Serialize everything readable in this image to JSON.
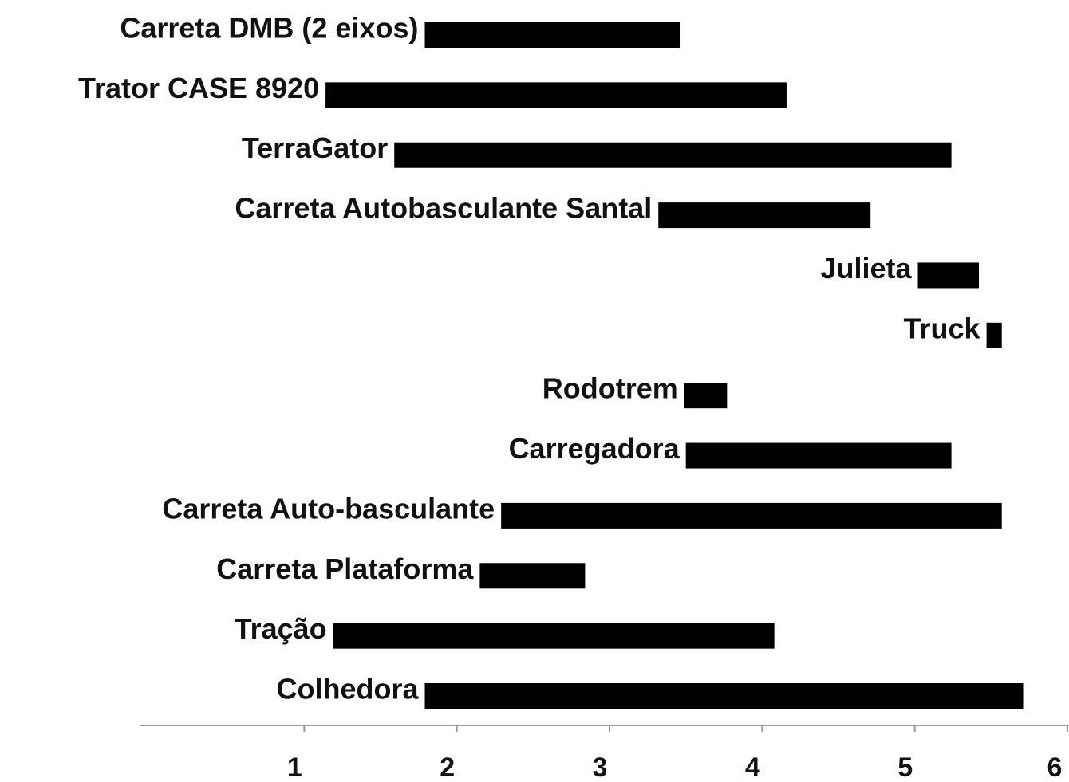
{
  "chart_data": {
    "type": "range_bar",
    "categories": [
      "Carreta DMB (2 eixos)",
      "Trator CASE 8920",
      "TerraGator",
      "Carreta Autobasculante Santal",
      "Julieta",
      "Truck",
      "Rodotrem",
      "Carregadora",
      "Carreta Auto-basculante",
      "Carreta Plataforma",
      "Tração",
      "Colhedora"
    ],
    "starts": [
      1.79,
      1.14,
      1.59,
      3.32,
      5.02,
      5.47,
      3.49,
      3.5,
      2.29,
      2.15,
      1.19,
      1.79
    ],
    "ends": [
      3.46,
      4.16,
      5.24,
      4.71,
      5.42,
      5.57,
      3.77,
      5.24,
      5.57,
      2.84,
      4.08,
      5.71
    ],
    "color": "#000000",
    "xlim": [
      0,
      6
    ],
    "xticks": [
      1,
      2,
      3,
      4,
      5,
      6
    ]
  }
}
